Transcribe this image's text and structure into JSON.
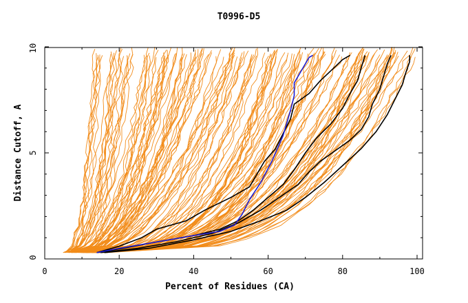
{
  "chart_data": {
    "type": "line",
    "title": "T0996-D5",
    "xlabel": "Percent of Residues (CA)",
    "ylabel": "Distance Cutoff, A",
    "xlim": [
      0,
      100
    ],
    "ylim": [
      0,
      10
    ],
    "x_ticks": [
      "0",
      "20",
      "40",
      "60",
      "80",
      "100"
    ],
    "y_ticks": [
      "0",
      "5",
      "10"
    ],
    "grid": false,
    "legend": "none",
    "colors": {
      "background": "#ffffff",
      "axes": "#000000",
      "orange": "#f28c1a",
      "blue": "#1e1ed2",
      "black": "#000000"
    },
    "series": [
      {
        "color": "blue",
        "points": [
          [
            14,
            0.3
          ],
          [
            20,
            0.5
          ],
          [
            30,
            0.8
          ],
          [
            40,
            1.1
          ],
          [
            47,
            1.3
          ],
          [
            51,
            1.6
          ],
          [
            53,
            2.1
          ],
          [
            55,
            2.8
          ],
          [
            58,
            3.6
          ],
          [
            61,
            4.6
          ],
          [
            64,
            5.8
          ],
          [
            66,
            7.0
          ],
          [
            67,
            7.7
          ],
          [
            67,
            8.3
          ],
          [
            69,
            8.9
          ],
          [
            71,
            9.5
          ],
          [
            72,
            9.6
          ]
        ]
      },
      {
        "color": "black",
        "points": [
          [
            14,
            0.3
          ],
          [
            20,
            0.6
          ],
          [
            26,
            1.0
          ],
          [
            30,
            1.4
          ],
          [
            38,
            1.8
          ],
          [
            43,
            2.3
          ],
          [
            50,
            2.9
          ],
          [
            55,
            3.4
          ],
          [
            57,
            4.0
          ],
          [
            59,
            4.6
          ],
          [
            62,
            5.2
          ],
          [
            64,
            5.9
          ],
          [
            66,
            6.6
          ],
          [
            67,
            7.3
          ],
          [
            71,
            7.8
          ],
          [
            74,
            8.4
          ],
          [
            77,
            8.9
          ],
          [
            80,
            9.4
          ],
          [
            82,
            9.6
          ]
        ]
      },
      {
        "color": "black",
        "points": [
          [
            14,
            0.3
          ],
          [
            21,
            0.5
          ],
          [
            30,
            0.8
          ],
          [
            40,
            1.1
          ],
          [
            47,
            1.4
          ],
          [
            52,
            1.8
          ],
          [
            56,
            2.3
          ],
          [
            60,
            2.9
          ],
          [
            64,
            3.5
          ],
          [
            67,
            4.2
          ],
          [
            70,
            5.0
          ],
          [
            73,
            5.7
          ],
          [
            77,
            6.4
          ],
          [
            80,
            7.1
          ],
          [
            82,
            7.8
          ],
          [
            84,
            8.4
          ],
          [
            85,
            9.0
          ],
          [
            86,
            9.6
          ]
        ]
      },
      {
        "color": "black",
        "points": [
          [
            15,
            0.3
          ],
          [
            25,
            0.5
          ],
          [
            35,
            0.8
          ],
          [
            45,
            1.2
          ],
          [
            52,
            1.7
          ],
          [
            58,
            2.3
          ],
          [
            63,
            2.9
          ],
          [
            68,
            3.5
          ],
          [
            71,
            4.1
          ],
          [
            74,
            4.6
          ],
          [
            78,
            5.1
          ],
          [
            82,
            5.6
          ],
          [
            85,
            6.1
          ],
          [
            87,
            6.7
          ],
          [
            88,
            7.3
          ],
          [
            90,
            8.0
          ],
          [
            91,
            8.6
          ],
          [
            92,
            9.2
          ],
          [
            93,
            9.6
          ]
        ]
      },
      {
        "color": "black",
        "points": [
          [
            16,
            0.3
          ],
          [
            28,
            0.5
          ],
          [
            40,
            0.9
          ],
          [
            50,
            1.3
          ],
          [
            58,
            1.8
          ],
          [
            65,
            2.3
          ],
          [
            70,
            2.9
          ],
          [
            75,
            3.6
          ],
          [
            80,
            4.4
          ],
          [
            85,
            5.2
          ],
          [
            89,
            6.0
          ],
          [
            92,
            6.8
          ],
          [
            94,
            7.5
          ],
          [
            96,
            8.2
          ],
          [
            97,
            8.8
          ],
          [
            98,
            9.3
          ],
          [
            98,
            9.6
          ]
        ]
      }
    ]
  }
}
